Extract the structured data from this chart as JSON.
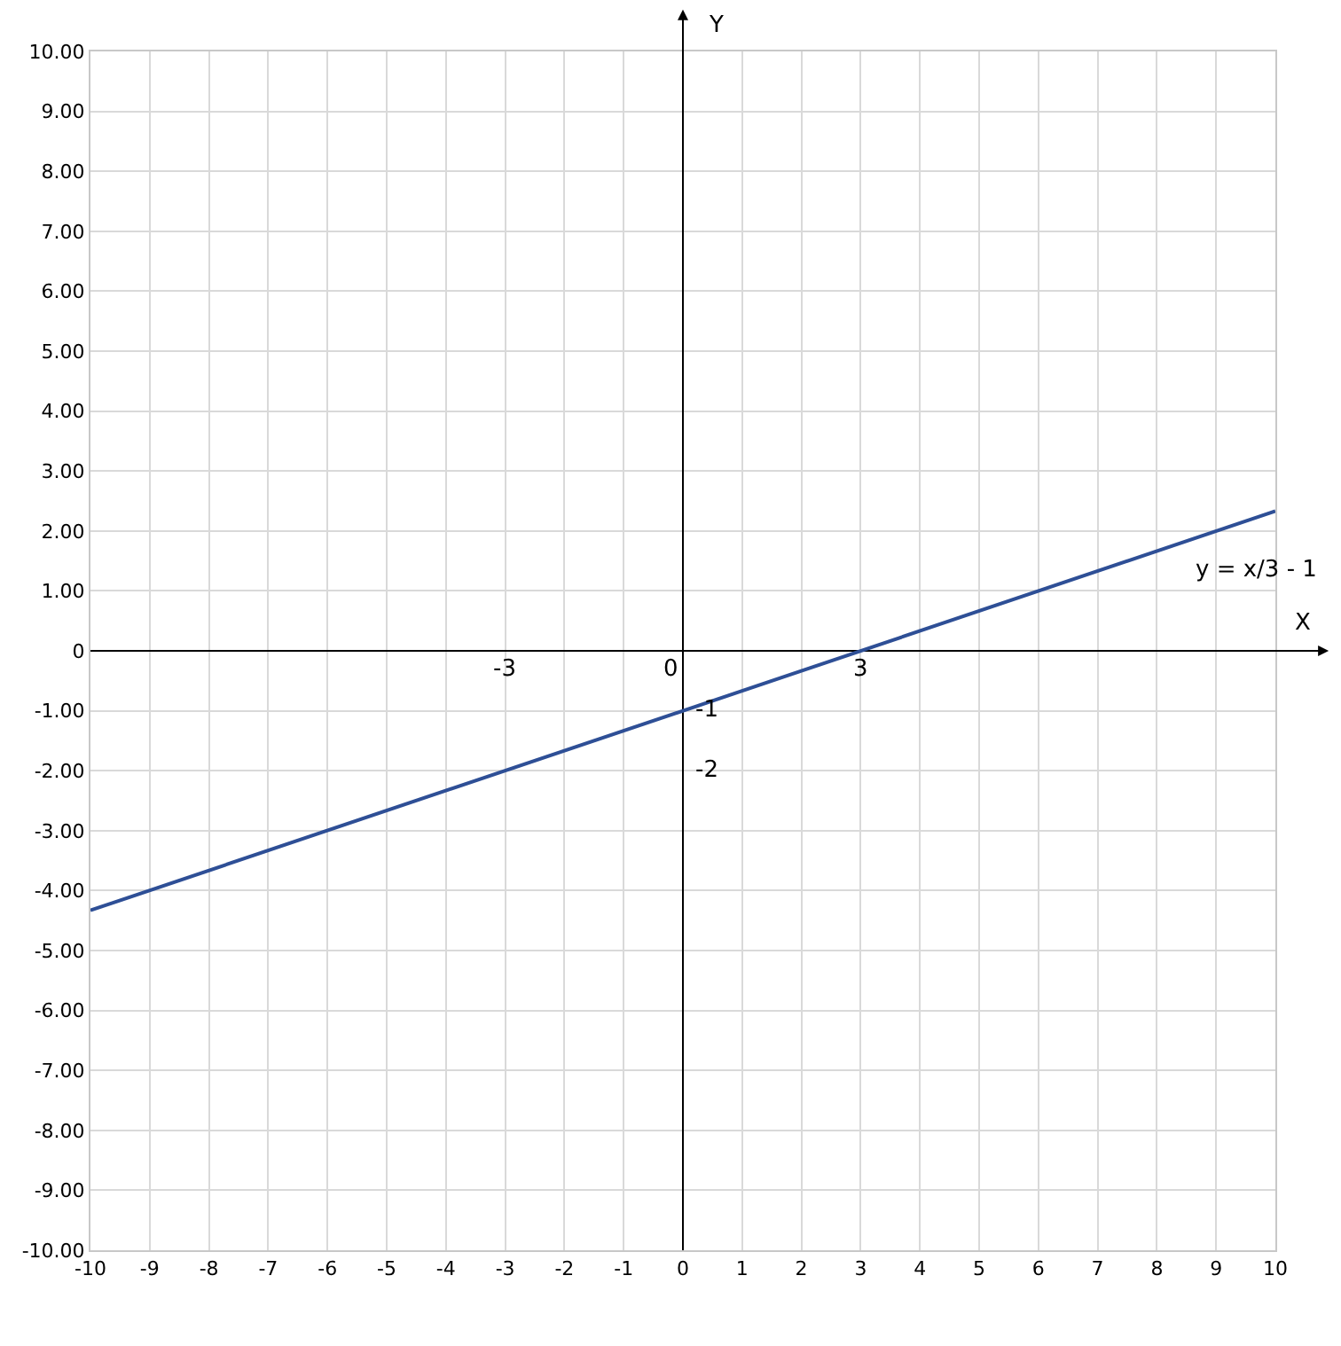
{
  "chart_data": {
    "type": "line",
    "xlabel": "X",
    "ylabel": "Y",
    "xlim": [
      -10,
      10
    ],
    "ylim": [
      -10,
      10
    ],
    "xticks": [
      -10,
      -9,
      -8,
      -7,
      -6,
      -5,
      -4,
      -3,
      -2,
      -1,
      0,
      1,
      2,
      3,
      4,
      5,
      6,
      7,
      8,
      9,
      10
    ],
    "yticks": [
      {
        "value": -10,
        "label": "-10.00"
      },
      {
        "value": -9,
        "label": "-9.00"
      },
      {
        "value": -8,
        "label": "-8.00"
      },
      {
        "value": -7,
        "label": "-7.00"
      },
      {
        "value": -6,
        "label": "-6.00"
      },
      {
        "value": -5,
        "label": "-5.00"
      },
      {
        "value": -4,
        "label": "-4.00"
      },
      {
        "value": -3,
        "label": "-3.00"
      },
      {
        "value": -2,
        "label": "-2.00"
      },
      {
        "value": -1,
        "label": "-1.00"
      },
      0,
      {
        "value": 1,
        "label": "1.00"
      },
      {
        "value": 2,
        "label": "2.00"
      },
      {
        "value": 3,
        "label": "3.00"
      },
      {
        "value": 4,
        "label": "4.00"
      },
      {
        "value": 5,
        "label": "5.00"
      },
      {
        "value": 6,
        "label": "6.00"
      },
      {
        "value": 7,
        "label": "7.00"
      },
      {
        "value": 8,
        "label": "8.00"
      },
      {
        "value": 9,
        "label": "9.00"
      },
      {
        "value": 10,
        "label": "10.00"
      }
    ],
    "series": [
      {
        "name": "y = x/3 - 1",
        "color": "#2e4f96",
        "x": [
          -10,
          10
        ],
        "values": [
          -4.33,
          2.33
        ]
      }
    ],
    "annotations": [
      "-3",
      "0",
      {
        "text": "3",
        "x": 3,
        "y": 0
      },
      {
        "text": "-1",
        "x": 0,
        "y": -1
      },
      "-2"
    ],
    "grid": true,
    "legend": false,
    "marker": "none",
    "line_style": "solid"
  }
}
